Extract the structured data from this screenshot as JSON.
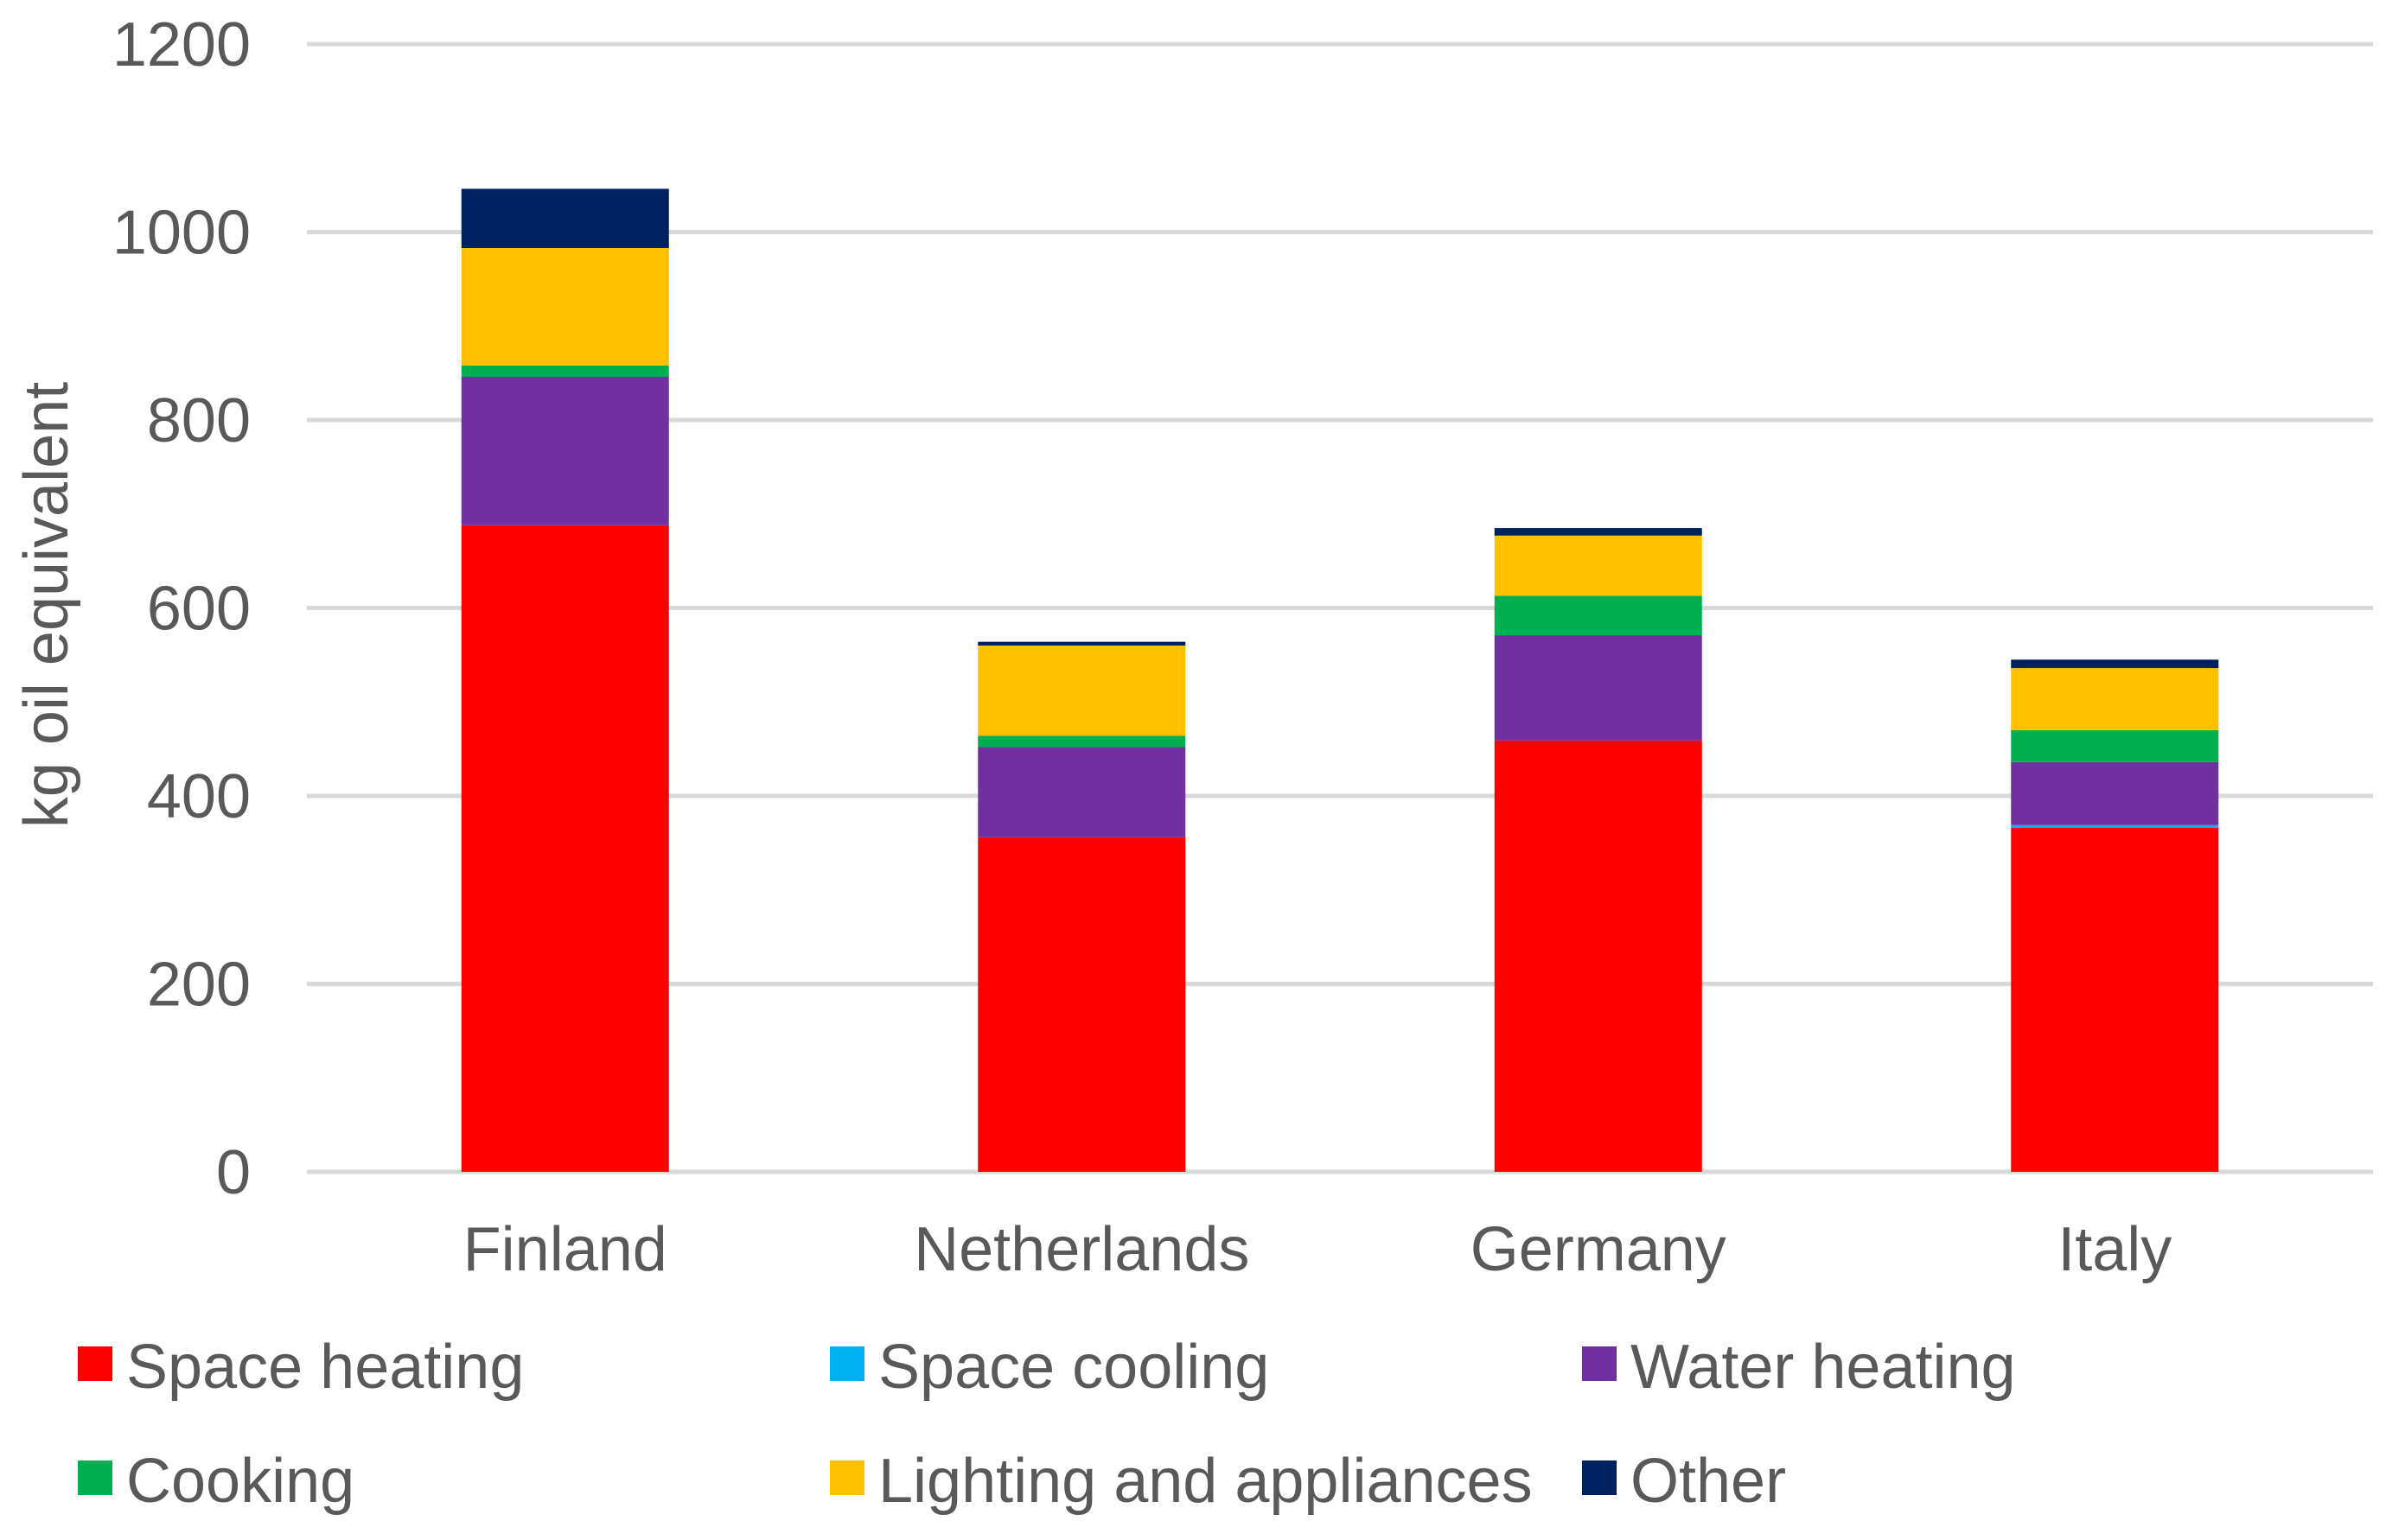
{
  "chart_data": {
    "type": "bar",
    "stacked": true,
    "title": "",
    "xlabel": "",
    "ylabel": "kg oil equivalent",
    "ylim": [
      0,
      1200
    ],
    "yticks": [
      0,
      200,
      400,
      600,
      800,
      1000,
      1200
    ],
    "grid": true,
    "legend_position": "bottom",
    "categories": [
      "Finland",
      "Netherlands",
      "Germany",
      "Italy"
    ],
    "series": [
      {
        "name": "Space heating",
        "color": "#FF0000",
        "values": [
          688,
          356,
          459,
          366
        ]
      },
      {
        "name": "Space cooling",
        "color": "#00B0F0",
        "values": [
          0,
          0,
          0,
          3
        ]
      },
      {
        "name": "Water heating",
        "color": "#7030A0",
        "values": [
          158,
          96,
          112,
          67
        ]
      },
      {
        "name": "Cooking",
        "color": "#00B050",
        "values": [
          12,
          12,
          42,
          34
        ]
      },
      {
        "name": "Lighting and appliances",
        "color": "#FFC000",
        "values": [
          125,
          96,
          64,
          66
        ]
      },
      {
        "name": "Other",
        "color": "#002060",
        "values": [
          63,
          4,
          8,
          9
        ]
      }
    ]
  }
}
